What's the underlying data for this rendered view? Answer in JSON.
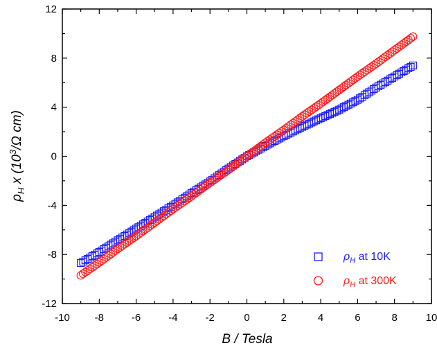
{
  "chart_data": {
    "type": "scatter",
    "xlabel": "B / Tesla",
    "ylabel": {
      "symbol": "ρ",
      "sub": "H",
      "mid": " x (10",
      "sup": "3",
      "tail": "/Ω cm)"
    },
    "xlim": [
      -10,
      10
    ],
    "ylim": [
      -12,
      12
    ],
    "x_ticks": [
      "-10",
      "-8",
      "-6",
      "-4",
      "-2",
      "0",
      "2",
      "4",
      "6",
      "8",
      "10"
    ],
    "y_ticks": [
      "-12",
      "-8",
      "-4",
      "0",
      "4",
      "8",
      "12"
    ],
    "grid": false,
    "legend_position": "bottom-right",
    "series": [
      {
        "name": "ρH at 10K",
        "legend_symbol": "ρ",
        "legend_sub": "H",
        "legend_text": " at 10K",
        "marker": "square",
        "color": "#1a1aff",
        "x": [
          -9,
          -8,
          -7,
          -6,
          -5,
          -4,
          -3,
          -2,
          -1,
          0,
          1,
          2,
          3,
          4,
          5,
          6,
          7,
          8,
          9
        ],
        "y": [
          -8.7,
          -7.8,
          -6.85,
          -5.9,
          -4.95,
          -4.0,
          -3.0,
          -2.05,
          -1.0,
          0.0,
          0.85,
          1.65,
          2.4,
          3.1,
          3.8,
          4.6,
          5.6,
          6.5,
          7.4
        ]
      },
      {
        "name": "ρH at 300K",
        "legend_symbol": "ρ",
        "legend_sub": "H",
        "legend_text": " at 300K",
        "marker": "circle",
        "color": "#ff1a1a",
        "x": [
          -9,
          -8,
          -7,
          -6,
          -5,
          -4,
          -3,
          -2,
          -1,
          0,
          1,
          2,
          3,
          4,
          5,
          6,
          7,
          8,
          9
        ],
        "y": [
          -9.7,
          -8.65,
          -7.55,
          -6.5,
          -5.4,
          -4.3,
          -3.25,
          -2.15,
          -1.1,
          0.0,
          1.1,
          2.15,
          3.25,
          4.3,
          5.4,
          6.5,
          7.55,
          8.65,
          9.75
        ]
      }
    ]
  }
}
